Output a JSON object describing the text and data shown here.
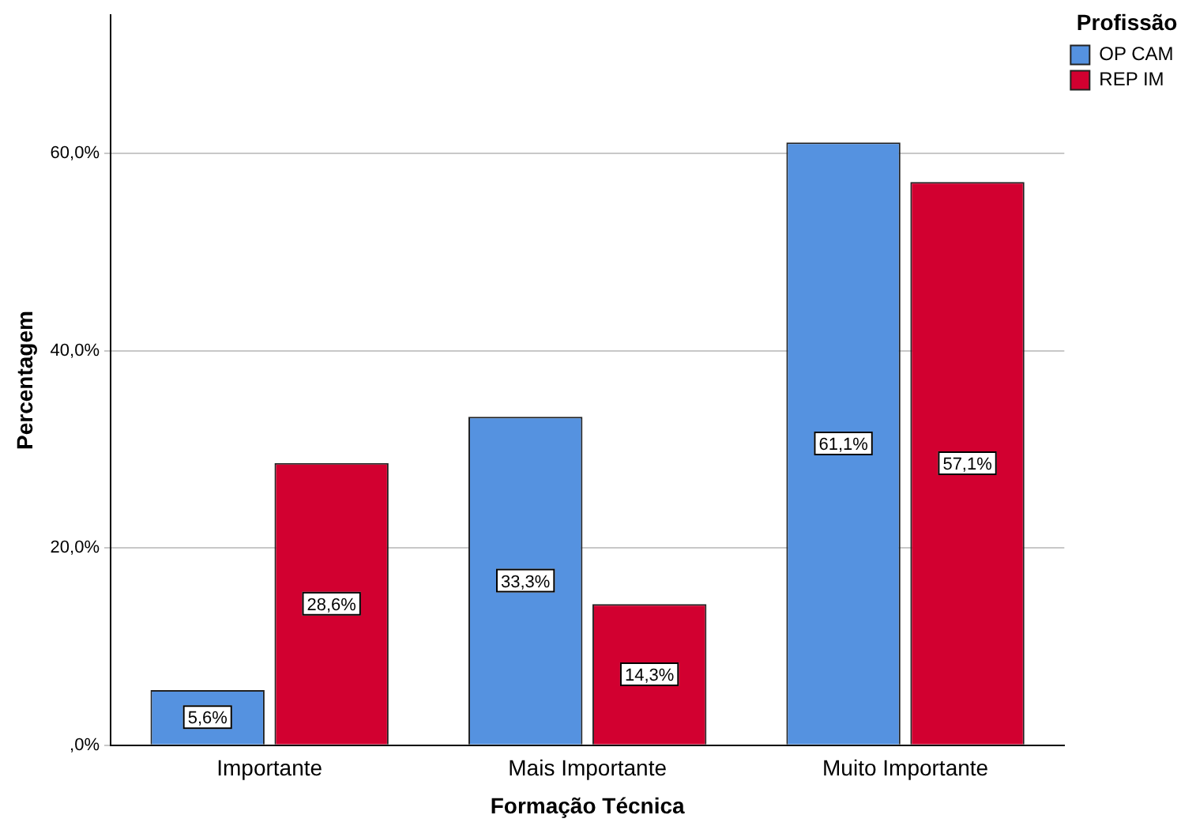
{
  "chart_data": {
    "type": "bar",
    "xlabel": "Formação Técnica",
    "ylabel": "Percentagem",
    "legend_title": "Profissão",
    "legend": "top right",
    "grid": "y",
    "categories": [
      "Importante",
      "Mais Importante",
      "Muito Importante"
    ],
    "series": [
      {
        "name": "OP CAM",
        "color": "#5592e0",
        "values": [
          5.6,
          33.3,
          61.1
        ],
        "value_labels": [
          "5,6%",
          "33,3%",
          "61,1%"
        ]
      },
      {
        "name": "REP IM",
        "color": "#d20030",
        "values": [
          28.6,
          14.3,
          57.1
        ],
        "value_labels": [
          "28,6%",
          "14,3%",
          "57,1%"
        ]
      }
    ],
    "ylim": [
      0,
      74
    ],
    "yticks": [
      {
        "value": 0,
        "label": ",0%"
      },
      {
        "value": 20,
        "label": "20,0%"
      },
      {
        "value": 40,
        "label": "40,0%"
      },
      {
        "value": 60,
        "label": "60,0%"
      }
    ]
  }
}
